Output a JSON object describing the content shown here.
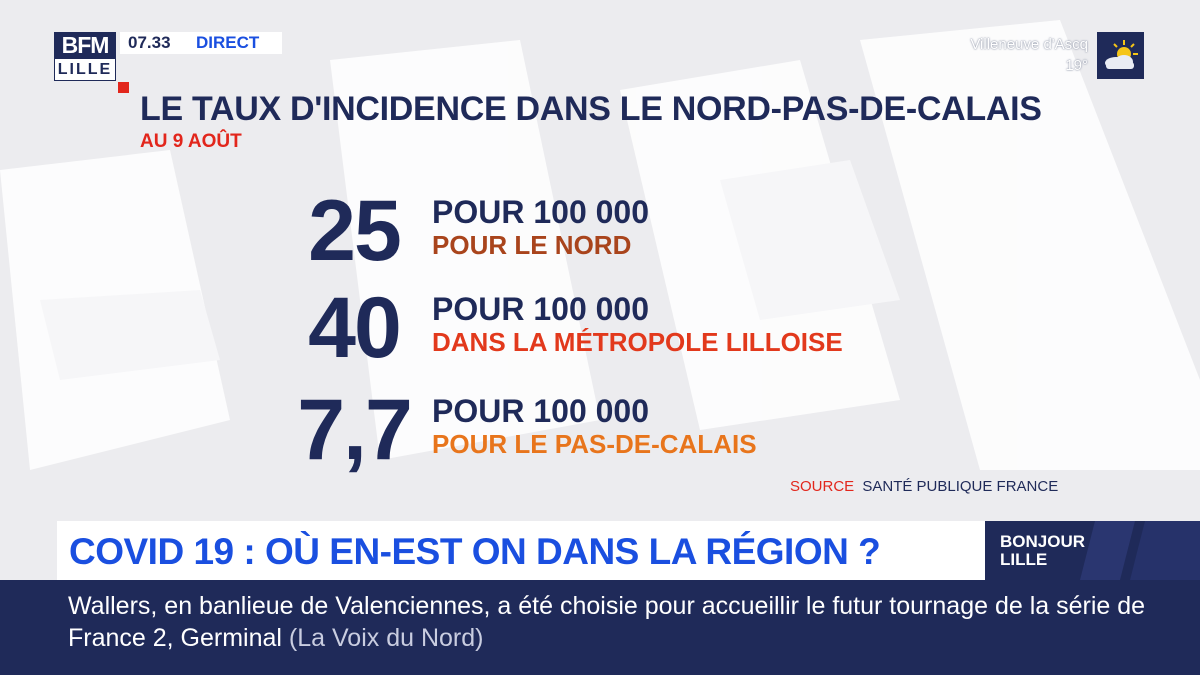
{
  "channel": {
    "logo_top": "BFM",
    "logo_bottom": "LILLE",
    "clock": "07.33",
    "live_label": "DIRECT"
  },
  "weather": {
    "city": "Villeneuve d'Ascq",
    "temperature": "19°",
    "icon": "sun-cloud-icon"
  },
  "graphic": {
    "title": "LE TAUX D'INCIDENCE DANS LE NORD-PAS-DE-CALAIS",
    "date": "AU 9 AOÛT",
    "stats": [
      {
        "value": "25",
        "unit": "POUR 100 000",
        "label": "POUR LE NORD",
        "color": "#a9441c"
      },
      {
        "value": "40",
        "unit": "POUR 100 000",
        "label": "DANS LA MÉTROPOLE LILLOISE",
        "color": "#e2391c"
      },
      {
        "value": "7,7",
        "unit": "POUR 100 000",
        "label": "POUR LE PAS-DE-CALAIS",
        "color": "#e8751c"
      }
    ],
    "source_key": "SOURCE",
    "source_value": "SANTÉ PUBLIQUE FRANCE"
  },
  "lower_third": {
    "headline": "COVID 19 : OÙ EN-EST ON DANS LA RÉGION ?",
    "show_name_line1": "BONJOUR",
    "show_name_line2": "LILLE"
  },
  "ticker": {
    "text": "Wallers, en banlieue de Valenciennes, a été choisie pour accueillir le futur tournage de la série de France 2, Germinal",
    "source": "(La Voix du Nord)"
  },
  "colors": {
    "navy": "#1f2a59",
    "blue": "#1a4fe0",
    "red": "#e2261c"
  }
}
